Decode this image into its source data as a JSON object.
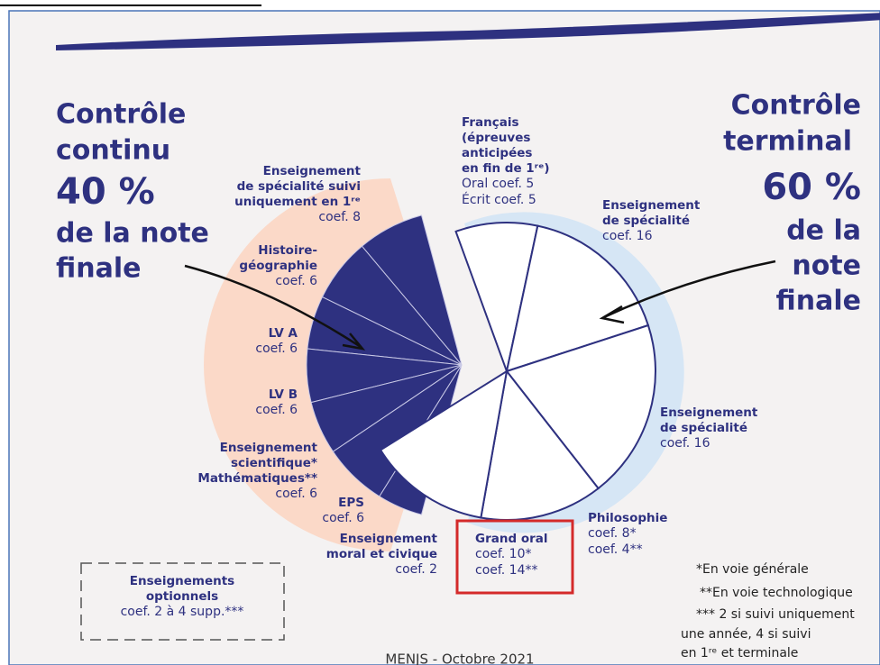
{
  "left": {
    "title": [
      "Contrôle",
      "continu"
    ],
    "percent": "40 %",
    "subtitle": [
      "de la note",
      "finale"
    ],
    "items": [
      {
        "lines": [
          "Enseignement",
          "de spécialité suivi",
          "uniquement en 1ʳᵉ"
        ],
        "coef": [
          "coef. 8"
        ]
      },
      {
        "lines": [
          "Histoire-",
          "géographie"
        ],
        "coef": [
          "coef. 6"
        ]
      },
      {
        "lines": [
          "LV A"
        ],
        "coef": [
          "coef. 6"
        ]
      },
      {
        "lines": [
          "LV B"
        ],
        "coef": [
          "coef. 6"
        ]
      },
      {
        "lines": [
          "Enseignement",
          "scientifique*",
          "Mathématiques**"
        ],
        "coef": [
          "coef. 6"
        ]
      },
      {
        "lines": [
          "EPS"
        ],
        "coef": [
          "coef. 6"
        ]
      },
      {
        "lines": [
          "Enseignement",
          "moral et civique"
        ],
        "coef": [
          "coef. 2"
        ]
      }
    ]
  },
  "right": {
    "title": [
      "Contrôle",
      "terminal"
    ],
    "percent": "60 %",
    "subtitle": [
      "de la",
      "note",
      "finale"
    ],
    "items": [
      {
        "lines": [
          "Français",
          "(épreuves",
          "anticipées",
          "en fin de 1ʳᵉ)"
        ],
        "coef": [
          "Oral coef. 5",
          "Écrit coef. 5"
        ]
      },
      {
        "lines": [
          "Enseignement",
          "de spécialité"
        ],
        "coef": [
          "coef. 16"
        ]
      },
      {
        "lines": [
          "Enseignement",
          "de spécialité"
        ],
        "coef": [
          "coef. 16"
        ]
      },
      {
        "lines": [
          "Philosophie"
        ],
        "coef": [
          "coef. 8*",
          "coef. 4**"
        ]
      },
      {
        "lines": [
          "Grand oral"
        ],
        "coef": [
          "coef. 10*",
          "coef. 14**"
        ]
      }
    ]
  },
  "optional": {
    "lines": [
      "Enseignements",
      "optionnels"
    ],
    "coef": [
      "coef. 2 à 4 supp.***"
    ]
  },
  "notes": [
    "*En voie générale",
    "**En voie technologique",
    "*** 2 si suivi uniquement",
    "une année, 4 si suivi",
    "en 1ʳᵉ et terminale"
  ],
  "credit": "MENJS - Octobre 2021"
}
